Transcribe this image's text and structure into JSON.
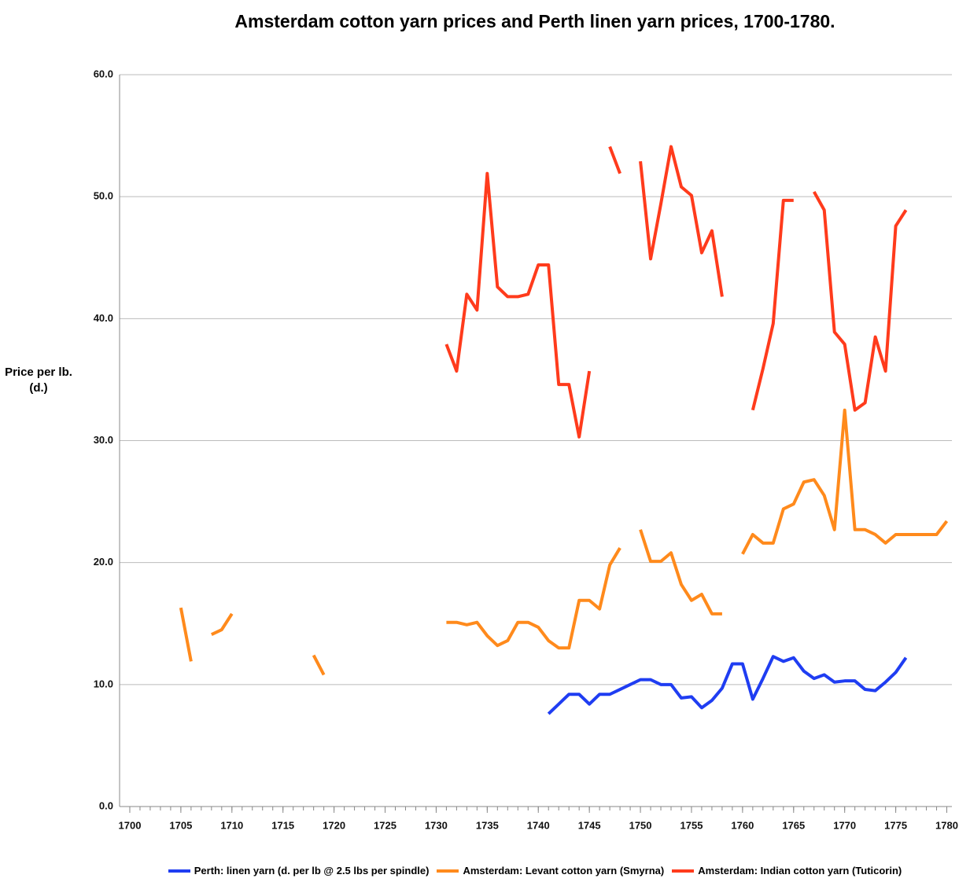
{
  "chart_data": {
    "type": "line",
    "title": "Amsterdam cotton yarn prices and Perth linen yarn prices, 1700-1780.",
    "y_label": "Price per lb. (d.)",
    "x": [
      1700,
      1701,
      1702,
      1703,
      1704,
      1705,
      1706,
      1707,
      1708,
      1709,
      1710,
      1711,
      1712,
      1713,
      1714,
      1715,
      1716,
      1717,
      1718,
      1719,
      1720,
      1721,
      1722,
      1723,
      1724,
      1725,
      1726,
      1727,
      1728,
      1729,
      1730,
      1731,
      1732,
      1733,
      1734,
      1735,
      1736,
      1737,
      1738,
      1739,
      1740,
      1741,
      1742,
      1743,
      1744,
      1745,
      1746,
      1747,
      1748,
      1749,
      1750,
      1751,
      1752,
      1753,
      1754,
      1755,
      1756,
      1757,
      1758,
      1759,
      1760,
      1761,
      1762,
      1763,
      1764,
      1765,
      1766,
      1767,
      1768,
      1769,
      1770,
      1771,
      1772,
      1773,
      1774,
      1775,
      1776,
      1777,
      1778,
      1779,
      1780
    ],
    "series": [
      {
        "name": "Perth: linen yarn (d. per lb @ 2.5 lbs per spindle)",
        "color": "#1f3df2",
        "values": [
          null,
          null,
          null,
          null,
          null,
          null,
          null,
          null,
          null,
          null,
          null,
          null,
          null,
          null,
          null,
          null,
          null,
          null,
          null,
          null,
          null,
          null,
          null,
          null,
          null,
          null,
          null,
          null,
          null,
          null,
          null,
          null,
          null,
          null,
          null,
          null,
          null,
          null,
          null,
          null,
          null,
          7.6,
          8.4,
          9.2,
          9.2,
          8.4,
          9.2,
          9.2,
          9.6,
          10.0,
          10.4,
          10.4,
          10.0,
          10.0,
          8.9,
          9.0,
          8.1,
          8.7,
          9.7,
          11.7,
          11.7,
          8.8,
          10.5,
          12.3,
          11.9,
          12.2,
          11.1,
          10.5,
          10.8,
          10.2,
          10.3,
          10.3,
          9.6,
          9.5,
          10.2,
          11.0,
          12.2,
          null,
          null,
          null,
          null
        ]
      },
      {
        "name": "Amsterdam: Levant cotton yarn (Smyrna)",
        "color": "#ff8a1c",
        "values": [
          null,
          null,
          null,
          null,
          null,
          16.3,
          11.9,
          null,
          14.1,
          14.5,
          15.8,
          null,
          null,
          null,
          null,
          null,
          null,
          null,
          12.4,
          10.8,
          null,
          null,
          null,
          null,
          null,
          null,
          null,
          null,
          null,
          null,
          null,
          15.1,
          15.1,
          14.9,
          15.1,
          14.0,
          13.2,
          13.6,
          15.1,
          15.1,
          14.7,
          13.6,
          13.0,
          13.0,
          16.9,
          16.9,
          16.2,
          19.8,
          21.2,
          null,
          22.7,
          20.1,
          20.1,
          20.8,
          18.2,
          16.9,
          17.4,
          15.8,
          15.8,
          null,
          20.7,
          22.3,
          21.6,
          21.6,
          24.4,
          24.8,
          26.6,
          26.8,
          25.5,
          22.7,
          32.5,
          22.7,
          22.7,
          22.3,
          21.6,
          22.3,
          22.3,
          22.3,
          22.3,
          22.3,
          23.4
        ]
      },
      {
        "name": "Amsterdam: Indian cotton yarn (Tuticorin)",
        "color": "#ff3b1c",
        "values": [
          null,
          null,
          null,
          null,
          null,
          null,
          null,
          null,
          null,
          null,
          null,
          null,
          null,
          null,
          null,
          null,
          null,
          null,
          null,
          null,
          null,
          null,
          null,
          null,
          null,
          null,
          null,
          null,
          null,
          null,
          null,
          37.9,
          35.7,
          42.0,
          40.7,
          51.9,
          42.6,
          41.8,
          41.8,
          42.0,
          44.4,
          44.4,
          34.6,
          34.6,
          30.3,
          35.7,
          null,
          54.1,
          51.9,
          null,
          52.9,
          44.9,
          49.4,
          54.1,
          50.8,
          50.1,
          45.4,
          47.2,
          41.8,
          null,
          null,
          32.5,
          35.9,
          39.6,
          49.7,
          49.7,
          null,
          50.4,
          48.9,
          38.9,
          37.9,
          32.5,
          33.1,
          38.5,
          35.7,
          47.6,
          48.9,
          null,
          null,
          null,
          null
        ]
      }
    ],
    "xlim": [
      1699,
      1780.5
    ],
    "xticks": [
      1700,
      1705,
      1710,
      1715,
      1720,
      1725,
      1730,
      1735,
      1740,
      1745,
      1750,
      1755,
      1760,
      1765,
      1770,
      1775,
      1780
    ],
    "ylim": [
      0,
      60
    ],
    "yticks": [
      {
        "value": 0,
        "label": "0.0"
      },
      {
        "value": 10,
        "label": "10.0"
      },
      {
        "value": 20,
        "label": "20.0"
      },
      {
        "value": 30,
        "label": "30.0"
      },
      {
        "value": 40,
        "label": "40.0"
      },
      {
        "value": 50,
        "label": "50.0"
      },
      {
        "value": 60,
        "label": "60.0"
      }
    ],
    "grid": true,
    "legend": "bottom"
  }
}
